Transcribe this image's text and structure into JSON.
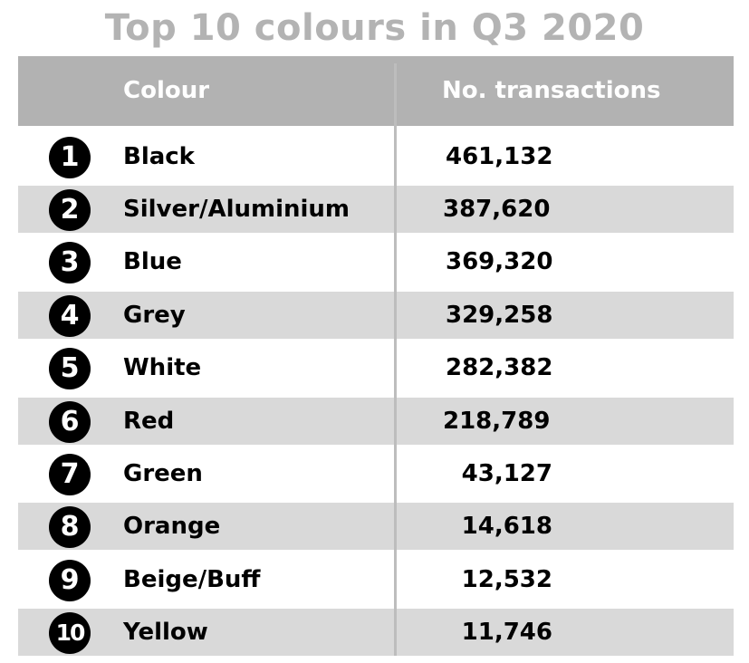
{
  "chart_data": {
    "type": "table",
    "title": "Top 10 colours in Q3 2020",
    "columns": [
      "Colour",
      "No. transactions"
    ],
    "rows": [
      {
        "rank": "1",
        "colour": "Black",
        "transactions": "461,132",
        "value": 461132
      },
      {
        "rank": "2",
        "colour": "Silver/Aluminium",
        "transactions": "387,620",
        "value": 387620
      },
      {
        "rank": "3",
        "colour": "Blue",
        "transactions": "369,320",
        "value": 369320
      },
      {
        "rank": "4",
        "colour": "Grey",
        "transactions": "329,258",
        "value": 329258
      },
      {
        "rank": "5",
        "colour": "White",
        "transactions": "282,382",
        "value": 282382
      },
      {
        "rank": "6",
        "colour": "Red",
        "transactions": "218,789",
        "value": 218789
      },
      {
        "rank": "7",
        "colour": "Green",
        "transactions": "43,127",
        "value": 43127
      },
      {
        "rank": "8",
        "colour": "Orange",
        "transactions": "14,618",
        "value": 14618
      },
      {
        "rank": "9",
        "colour": "Beige/Buff",
        "transactions": "12,532",
        "value": 12532
      },
      {
        "rank": "10",
        "colour": "Yellow",
        "transactions": "11,746",
        "value": 11746
      }
    ]
  },
  "colors": {
    "title": "#b3b3b3",
    "header_bg": "#b2b2b2",
    "header_text": "#ffffff",
    "row_shade": "#d9d9d9",
    "badge": "#000000"
  }
}
